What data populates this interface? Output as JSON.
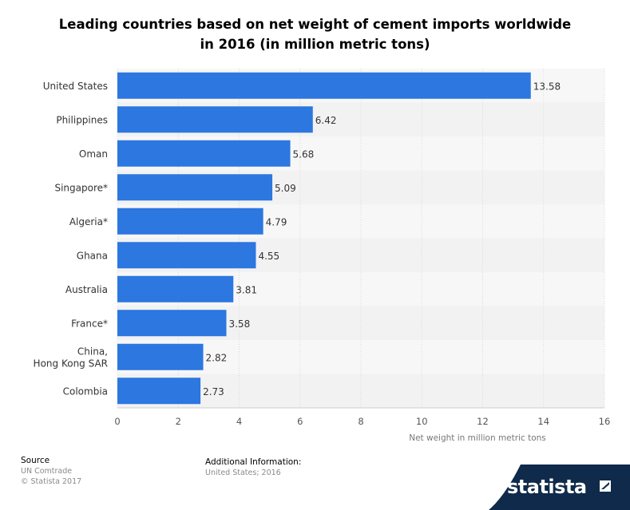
{
  "title_line1": "Leading countries based on net weight of cement imports worldwide",
  "title_line2": "in 2016 (in million metric tons)",
  "chart_data": {
    "type": "bar",
    "orientation": "horizontal",
    "categories": [
      "United States",
      "Philippines",
      "Oman",
      "Singapore*",
      "Algeria*",
      "Ghana",
      "Australia",
      "France*",
      "China,\nHong Kong SAR",
      "Colombia"
    ],
    "values": [
      13.58,
      6.42,
      5.68,
      5.09,
      4.79,
      4.55,
      3.81,
      3.58,
      2.82,
      2.73
    ],
    "data_labels": [
      "13.58",
      "6.42",
      "5.68",
      "5.09",
      "4.79",
      "4.55",
      "3.81",
      "3.58",
      "2.82",
      "2.73"
    ],
    "xlabel": "Net weight in million metric tons",
    "ylabel": "",
    "xlim": [
      0,
      16
    ],
    "xticks": [
      "0",
      "2",
      "4",
      "6",
      "8",
      "10",
      "12",
      "14",
      "16"
    ],
    "grid": true,
    "bar_color": "#2c77e0"
  },
  "footer": {
    "source_label": "Source",
    "source_lines": [
      "UN Comtrade",
      "© Statista 2017"
    ],
    "info_label": "Additional Information:",
    "info_lines": [
      "United States; 2016"
    ]
  },
  "brand": {
    "name": "statista",
    "icon": "statista-logo-icon",
    "color": "#0f2a4a"
  }
}
